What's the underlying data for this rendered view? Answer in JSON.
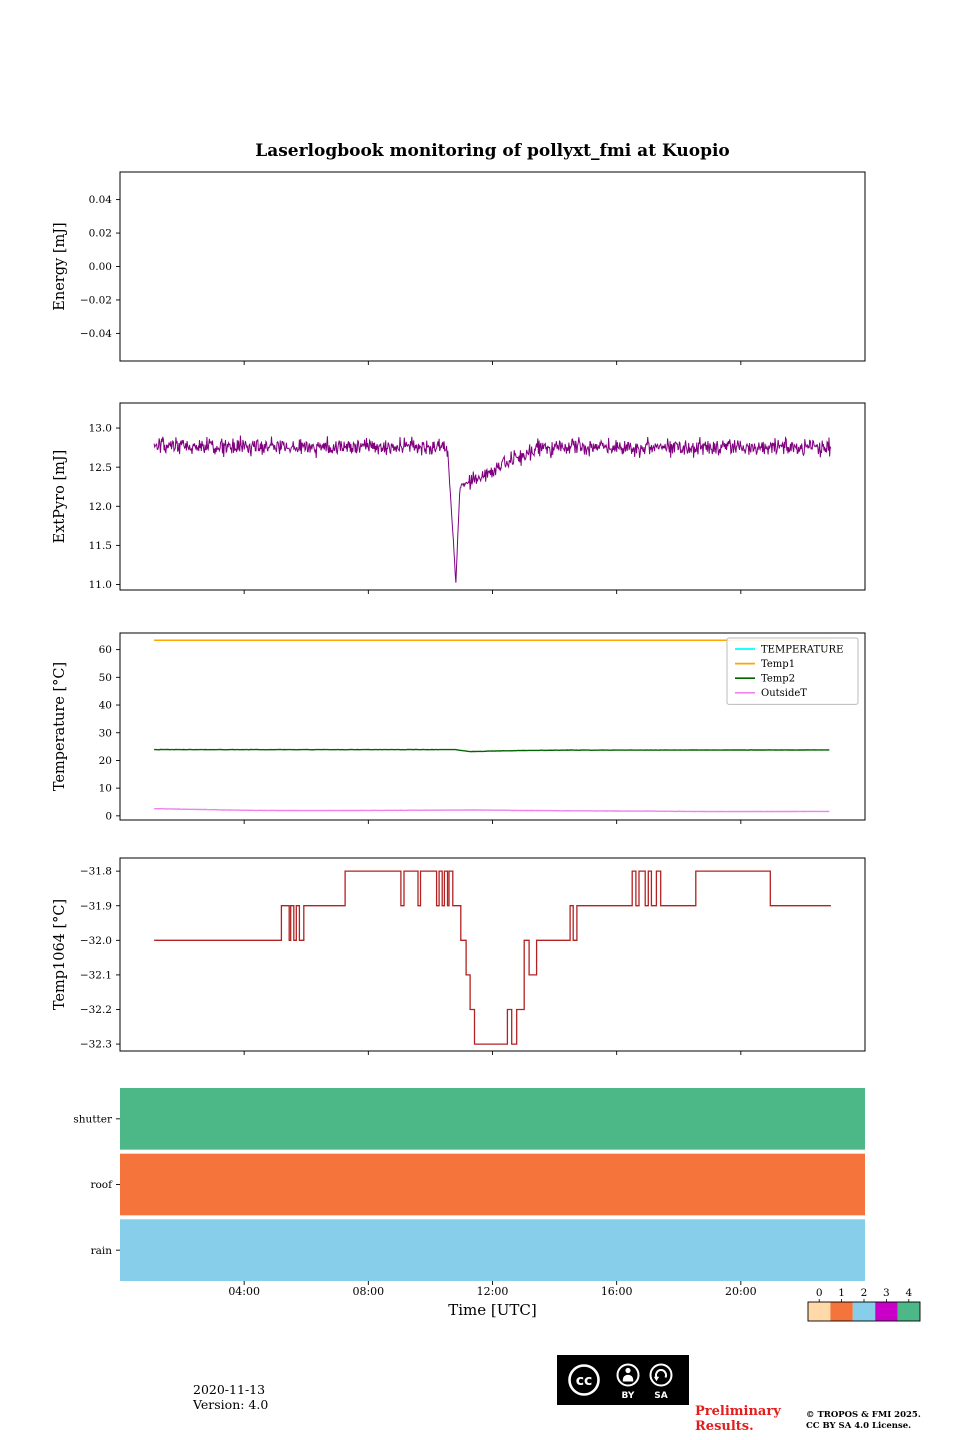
{
  "title": "Laserlogbook monitoring of pollyxt_fmi at Kuopio",
  "xlabel": "Time [UTC]",
  "xticks": {
    "values": [
      4,
      8,
      12,
      16,
      20
    ],
    "labels": [
      "04:00",
      "08:00",
      "12:00",
      "16:00",
      "20:00"
    ],
    "xlim": [
      0,
      24
    ]
  },
  "footer": {
    "date": "2020-11-13",
    "version": "Version: 4.0",
    "preliminary_line1": "Preliminary",
    "preliminary_line2": "Results.",
    "copyright_line1": "© TROPOS & FMI 2025.",
    "copyright_line2": "CC BY SA 4.0 License."
  },
  "license_badge": {
    "cc": "cc",
    "by": "BY",
    "sa": "SA"
  },
  "colorbar": {
    "ticks": [
      "0",
      "1",
      "2",
      "3",
      "4"
    ],
    "colors": [
      "#FFD9A8",
      "#F4743C",
      "#87CEEB",
      "#C800C8",
      "#4CB888"
    ]
  },
  "chart_data": [
    {
      "type": "line",
      "ylabel": "Energy [mJ]",
      "ylim": [
        -0.0565,
        0.0565
      ],
      "yticks": {
        "values": [
          0.04,
          0.02,
          0,
          -0.02,
          -0.04
        ],
        "labels": [
          "0.04",
          "0.02",
          "0.00",
          "−0.02",
          "−0.04"
        ]
      },
      "series": []
    },
    {
      "type": "line",
      "ylabel": "ExtPyro [mJ]",
      "ylim": [
        10.93,
        13.32
      ],
      "yticks": {
        "values": [
          13.0,
          12.5,
          12.0,
          11.5,
          11.0
        ],
        "labels": [
          "13.0",
          "12.5",
          "12.0",
          "11.5",
          "11.0"
        ]
      },
      "series": [
        {
          "name": "ExtPyro",
          "kind": "noisy",
          "color": "#800080",
          "baseline": 12.76,
          "noise_amp": 0.11,
          "t_start": 1.1,
          "t_end": 22.9,
          "dip": {
            "t_start": 10.55,
            "t_bottom": 10.82,
            "v_bottom": 11.02,
            "t_recover_start": 10.95,
            "v_recover_start": 12.25,
            "t_recover_end": 13.6,
            "v_recover_end": 12.76
          }
        }
      ]
    },
    {
      "type": "line",
      "ylabel": "Temperature [°C]",
      "ylim": [
        -1.5,
        66
      ],
      "yticks": {
        "values": [
          60,
          50,
          40,
          30,
          20,
          10,
          0
        ],
        "labels": [
          "60",
          "50",
          "40",
          "30",
          "20",
          "10",
          "0"
        ]
      },
      "legend": {
        "position": "upper right",
        "entries": [
          {
            "label": "TEMPERATURE",
            "color": "#00FFFF"
          },
          {
            "label": "Temp1",
            "color": "#FFA500"
          },
          {
            "label": "Temp2",
            "color": "#006400"
          },
          {
            "label": "OutsideT",
            "color": "#EE82EE"
          }
        ]
      },
      "series": [
        {
          "name": "TEMPERATURE",
          "kind": "flat",
          "color": "#00FFFF",
          "value": 63.4
        },
        {
          "name": "Temp1",
          "kind": "flat",
          "color": "#FFA500",
          "value": 63.4
        },
        {
          "name": "Temp2",
          "kind": "control",
          "color": "#006400",
          "noise": 0.05,
          "points": [
            [
              1.1,
              23.9
            ],
            [
              10.8,
              23.9
            ],
            [
              11.3,
              23.2
            ],
            [
              12.5,
              23.5
            ],
            [
              14,
              23.7
            ],
            [
              22.9,
              23.8
            ]
          ]
        },
        {
          "name": "OutsideT",
          "kind": "control",
          "color": "#EE82EE",
          "noise": 0.035,
          "points": [
            [
              1.1,
              2.6
            ],
            [
              4,
              2.0
            ],
            [
              6,
              1.9
            ],
            [
              9,
              2.0
            ],
            [
              11.5,
              2.1
            ],
            [
              14,
              1.85
            ],
            [
              17,
              1.7
            ],
            [
              19,
              1.55
            ],
            [
              22.9,
              1.6
            ]
          ]
        }
      ]
    },
    {
      "type": "step",
      "ylabel": "Temp1064 [°C]",
      "ylim": [
        -32.32,
        -31.762
      ],
      "yticks": {
        "values": [
          -31.8,
          -31.9,
          -32.0,
          -32.1,
          -32.2,
          -32.3
        ],
        "labels": [
          "−31.8",
          "−31.9",
          "−32.0",
          "−32.1",
          "−32.2",
          "−32.3"
        ]
      },
      "series": [
        {
          "name": "Temp1064",
          "kind": "step",
          "color": "#B22222",
          "points": [
            [
              1.1,
              -32.0
            ],
            [
              5.2,
              -31.9
            ],
            [
              5.45,
              -32.0
            ],
            [
              5.5,
              -31.9
            ],
            [
              5.6,
              -32.0
            ],
            [
              5.68,
              -31.9
            ],
            [
              5.78,
              -32.0
            ],
            [
              5.92,
              -31.9
            ],
            [
              7.25,
              -31.8
            ],
            [
              9.05,
              -31.9
            ],
            [
              9.15,
              -31.8
            ],
            [
              9.6,
              -31.9
            ],
            [
              9.68,
              -31.8
            ],
            [
              10.2,
              -31.9
            ],
            [
              10.28,
              -31.8
            ],
            [
              10.38,
              -31.9
            ],
            [
              10.45,
              -31.8
            ],
            [
              10.55,
              -31.9
            ],
            [
              10.6,
              -31.8
            ],
            [
              10.72,
              -31.9
            ],
            [
              10.98,
              -32.0
            ],
            [
              11.15,
              -32.1
            ],
            [
              11.28,
              -32.2
            ],
            [
              11.42,
              -32.3
            ],
            [
              12.48,
              -32.2
            ],
            [
              12.62,
              -32.3
            ],
            [
              12.78,
              -32.2
            ],
            [
              13.02,
              -32.0
            ],
            [
              13.18,
              -32.1
            ],
            [
              13.42,
              -32.0
            ],
            [
              14.5,
              -31.9
            ],
            [
              14.6,
              -32.0
            ],
            [
              14.72,
              -31.9
            ],
            [
              16.5,
              -31.8
            ],
            [
              16.62,
              -31.9
            ],
            [
              16.72,
              -31.8
            ],
            [
              16.92,
              -31.9
            ],
            [
              17.02,
              -31.8
            ],
            [
              17.12,
              -31.9
            ],
            [
              17.28,
              -31.8
            ],
            [
              17.42,
              -31.9
            ],
            [
              18.55,
              -31.8
            ],
            [
              20.95,
              -31.9
            ]
          ]
        }
      ]
    },
    {
      "type": "status",
      "categories": [
        "shutter",
        "roof",
        "rain"
      ],
      "values": {
        "shutter": 4,
        "roof": 1,
        "rain": 2
      },
      "colors": {
        "shutter": "#4CB888",
        "roof": "#F4743C",
        "rain": "#87CEEB"
      },
      "ylim": [
        0,
        1
      ]
    }
  ]
}
